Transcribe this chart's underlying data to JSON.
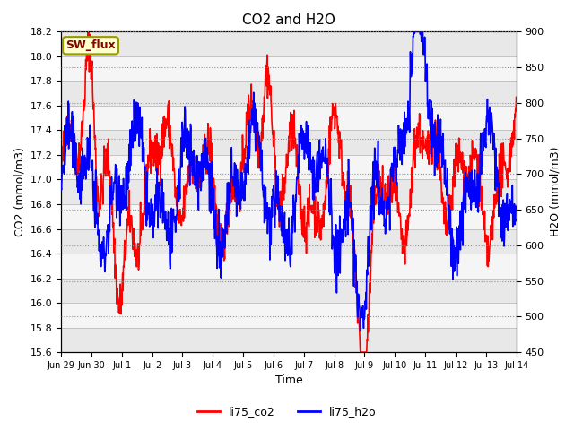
{
  "title": "CO2 and H2O",
  "xlabel": "Time",
  "ylabel_left": "CO2 (mmol/m3)",
  "ylabel_right": "H2O (mmol/m3)",
  "co2_ylim": [
    15.6,
    18.2
  ],
  "h2o_ylim": [
    450,
    900
  ],
  "co2_yticks": [
    15.6,
    15.8,
    16.0,
    16.2,
    16.4,
    16.6,
    16.8,
    17.0,
    17.2,
    17.4,
    17.6,
    17.8,
    18.0,
    18.2
  ],
  "h2o_yticks": [
    450,
    500,
    550,
    600,
    650,
    700,
    750,
    800,
    850,
    900
  ],
  "xtick_labels": [
    "Jun 29",
    "Jun 30",
    "Jul 1",
    "Jul 2",
    "Jul 3",
    "Jul 4",
    "Jul 5",
    "Jul 6",
    "Jul 7",
    "Jul 8",
    "Jul 9",
    "Jul 10",
    "Jul 11",
    "Jul 12",
    "Jul 13",
    "Jul 14"
  ],
  "annotation_text": "SW_flux",
  "annotation_color": "#8B0000",
  "annotation_bg": "#FFFFCC",
  "annotation_border": "#999900",
  "line_co2_color": "red",
  "line_h2o_color": "blue",
  "line_width": 1.2,
  "legend_co2": "li75_co2",
  "legend_h2o": "li75_h2o",
  "plot_bg": "#ffffff",
  "band_colors": [
    "#e8e8e8",
    "#f5f5f5"
  ]
}
